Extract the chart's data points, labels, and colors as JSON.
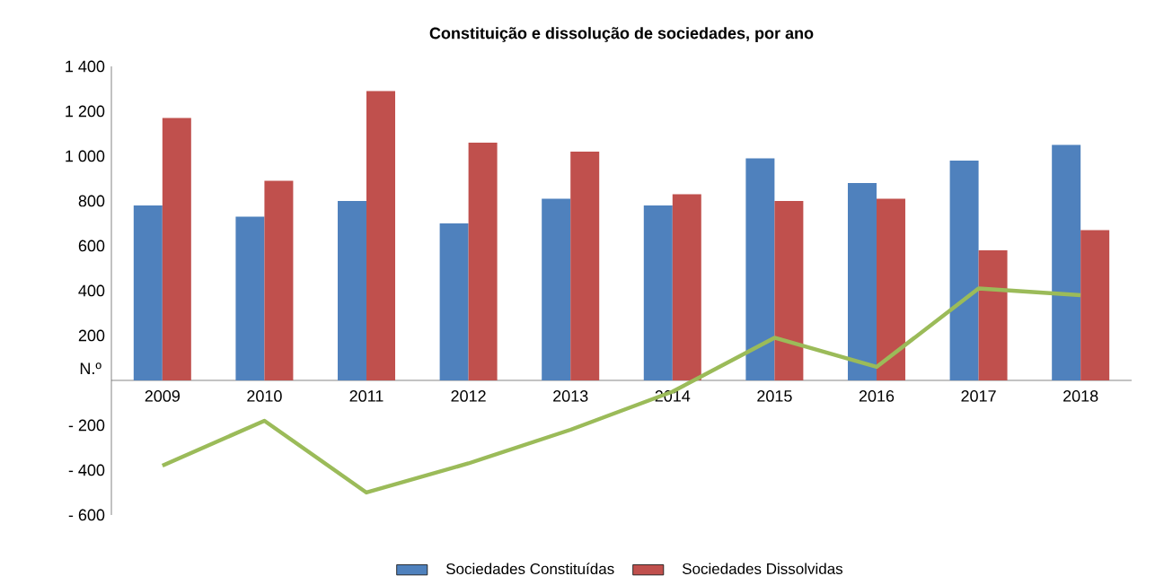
{
  "chart_data": {
    "type": "bar",
    "title": "Constituição e dissolução de sociedades, por ano",
    "ylabel": "N.º",
    "categories": [
      "2009",
      "2010",
      "2011",
      "2012",
      "2013",
      "2014",
      "2015",
      "2016",
      "2017",
      "2018"
    ],
    "series": [
      {
        "name": "Sociedades Constituídas",
        "color": "#4f81bd",
        "values": [
          780,
          730,
          800,
          700,
          810,
          780,
          990,
          880,
          980,
          1050
        ]
      },
      {
        "name": "Sociedades Dissolvidas",
        "color": "#c0504d",
        "values": [
          1170,
          890,
          1290,
          1060,
          1020,
          830,
          800,
          810,
          580,
          670
        ]
      },
      {
        "type": "line",
        "color": "#9bbb59",
        "values": [
          -380,
          -180,
          -500,
          -370,
          -220,
          -50,
          190,
          60,
          410,
          380
        ]
      }
    ],
    "ylim": [
      -600,
      1400
    ],
    "yticks": [
      {
        "value": -600,
        "label": "- 600"
      },
      {
        "value": -400,
        "label": "- 400"
      },
      {
        "value": -200,
        "label": "- 200"
      },
      {
        "value": 200,
        "label": "200"
      },
      {
        "value": 400,
        "label": "400"
      },
      {
        "value": 600,
        "label": "600"
      },
      {
        "value": 800,
        "label": "800"
      },
      {
        "value": 1000,
        "label": "1 000"
      },
      {
        "value": 1200,
        "label": "1 200"
      },
      {
        "value": 1400,
        "label": "1 400"
      }
    ],
    "grid": false,
    "legend": "bottom",
    "marker": "none",
    "line_style": "solid"
  }
}
